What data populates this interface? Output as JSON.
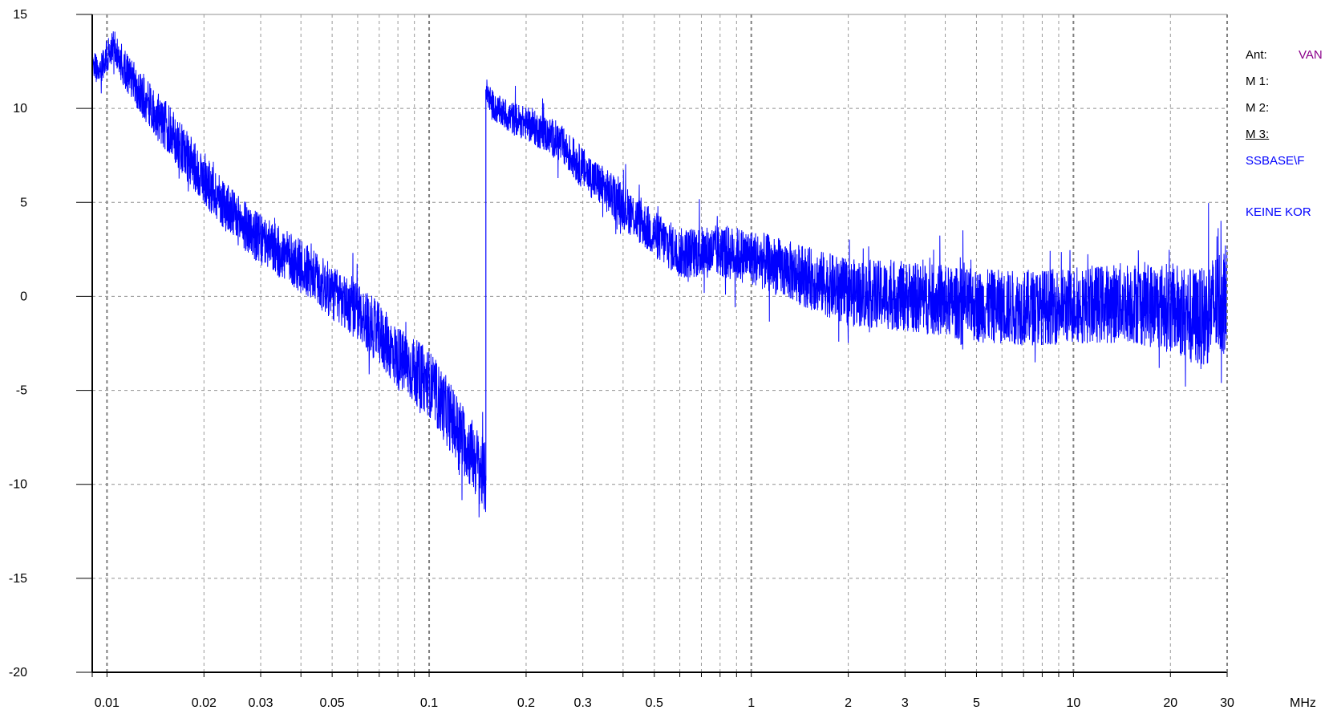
{
  "chart_data": {
    "type": "line",
    "title": "",
    "xlabel": "MHz",
    "ylabel": "",
    "x_scale": "log",
    "xlim": [
      0.009,
      30
    ],
    "ylim": [
      -20,
      15
    ],
    "grid": true,
    "x_tick_values": [
      0.01,
      0.02,
      0.03,
      0.05,
      0.1,
      0.2,
      0.3,
      0.5,
      1,
      2,
      3,
      5,
      10,
      20,
      30
    ],
    "x_tick_labels": [
      "0.01",
      "0.02",
      "0.03",
      "0.05",
      "0.1",
      "0.2",
      "0.3",
      "0.5",
      "1",
      "2",
      "3",
      "5",
      "10",
      "20",
      "30"
    ],
    "y_tick_values": [
      15,
      10,
      5,
      0,
      -5,
      -10,
      -15,
      -20
    ],
    "y_tick_labels": [
      "15",
      "10",
      "5",
      "0",
      "-5",
      "-10",
      "-15",
      "-20"
    ],
    "series": [
      {
        "color": "#0000ff",
        "segments": [
          {
            "x": [
              0.009,
              0.0095,
              0.01,
              0.0105,
              0.011,
              0.013,
              0.015,
              0.02,
              0.025,
              0.03,
              0.04,
              0.05,
              0.06,
              0.07,
              0.08,
              0.1,
              0.12,
              0.14,
              0.15
            ],
            "y": [
              12.3,
              12.0,
              12.8,
              13.3,
              12.5,
              10.5,
              9.2,
              6.2,
              4.2,
              3.0,
              1.6,
              0.2,
              -0.8,
              -2.0,
              -3.3,
              -4.6,
              -6.8,
              -8.8,
              -9.8
            ],
            "noise": [
              1.0,
              1.0,
              1.2,
              1.2,
              1.4,
              1.6,
              1.8,
              1.8,
              1.8,
              1.8,
              1.9,
              2.0,
              2.1,
              2.2,
              2.3,
              2.4,
              2.5,
              2.6,
              2.6
            ]
          },
          {
            "x": [
              0.15,
              0.16,
              0.18,
              0.2,
              0.25,
              0.3,
              0.4,
              0.5,
              0.6,
              0.8,
              1,
              1.5,
              2,
              3,
              5,
              7,
              10,
              15,
              20,
              25,
              30
            ],
            "y": [
              11.0,
              10.0,
              9.5,
              9.2,
              8.3,
              6.8,
              4.8,
              3.3,
              2.3,
              2.4,
              2.1,
              1.0,
              0.2,
              0.0,
              -0.5,
              -0.6,
              -0.5,
              -0.3,
              -0.6,
              -1.2,
              0.1
            ],
            "noise": [
              1.0,
              1.0,
              1.2,
              1.2,
              1.4,
              1.5,
              1.6,
              1.7,
              1.8,
              1.9,
              2.0,
              2.2,
              2.4,
              2.5,
              2.6,
              2.7,
              2.7,
              2.9,
              3.2,
              3.6,
              4.0
            ]
          }
        ]
      }
    ]
  },
  "side_panel": {
    "ant_label": "Ant:",
    "ant_value": "VAN",
    "m1_label": "M 1:",
    "m2_label": "M 2:",
    "m3_label": "M 3:",
    "path_text": "SSBASE\\F",
    "note_text": "KEINE KOR",
    "ant_value_color": "#8b008b",
    "info_color": "#0000ff"
  }
}
